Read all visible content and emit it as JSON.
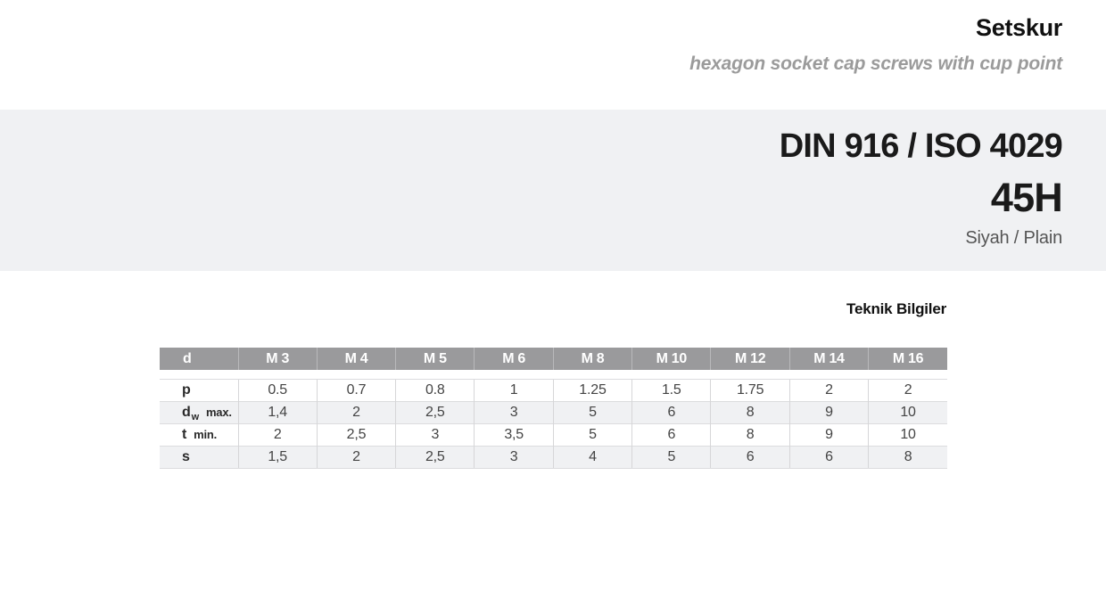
{
  "header": {
    "title": "Setskur",
    "subtitle": "hexagon socket cap screws with cup point"
  },
  "band": {
    "standard": "DIN 916 / ISO 4029",
    "grade": "45H",
    "finish": "Siyah / Plain"
  },
  "section_title": "Teknik Bilgiler",
  "table": {
    "header_label": "d",
    "columns": [
      "M 3",
      "M 4",
      "M 5",
      "M 6",
      "M 8",
      "M 10",
      "M 12",
      "M 14",
      "M 16"
    ],
    "rows": [
      {
        "symbol": "p",
        "subscript": "",
        "qualifier": "",
        "values": [
          "0.5",
          "0.7",
          "0.8",
          "1",
          "1.25",
          "1.5",
          "1.75",
          "2",
          "2"
        ]
      },
      {
        "symbol": "d",
        "subscript": "w",
        "qualifier": "max.",
        "values": [
          "1,4",
          "2",
          "2,5",
          "3",
          "5",
          "6",
          "8",
          "9",
          "10"
        ]
      },
      {
        "symbol": "t",
        "subscript": "",
        "qualifier": "min.",
        "values": [
          "2",
          "2,5",
          "3",
          "3,5",
          "5",
          "6",
          "8",
          "9",
          "10"
        ]
      },
      {
        "symbol": "s",
        "subscript": "",
        "qualifier": "",
        "values": [
          "1,5",
          "2",
          "2,5",
          "3",
          "4",
          "5",
          "6",
          "6",
          "8"
        ]
      }
    ]
  }
}
